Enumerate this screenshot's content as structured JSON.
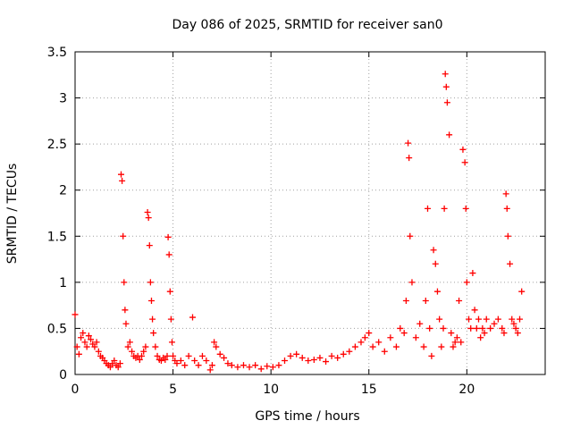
{
  "chart_data": {
    "type": "scatter",
    "title": "Day 086 of 2025, SRMTID for receiver san0",
    "xlabel": "GPS time / hours",
    "ylabel": "SRMTID / TECUs",
    "xlim": [
      0,
      24
    ],
    "ylim": [
      0,
      3.5
    ],
    "xticks": [
      0,
      5,
      10,
      15,
      20
    ],
    "xtick_labels": [
      "0",
      "5",
      "10",
      "15",
      "20"
    ],
    "yticks": [
      0,
      0.5,
      1,
      1.5,
      2,
      2.5,
      3,
      3.5
    ],
    "ytick_labels": [
      "0",
      "0.5",
      "1",
      "1.5",
      "2",
      "2.5",
      "3",
      "3.5"
    ],
    "grid": true,
    "marker": "+",
    "color": "#ff0000",
    "series": [
      {
        "name": "SRMTID",
        "x": [
          0.0,
          0.1,
          0.2,
          0.3,
          0.4,
          0.5,
          0.6,
          0.7,
          0.8,
          0.9,
          1.0,
          1.1,
          1.2,
          1.3,
          1.4,
          1.5,
          1.6,
          1.7,
          1.8,
          1.9,
          2.0,
          2.1,
          2.2,
          2.3,
          2.35,
          2.4,
          2.45,
          2.5,
          2.55,
          2.6,
          2.7,
          2.8,
          2.9,
          3.0,
          3.1,
          3.2,
          3.3,
          3.4,
          3.5,
          3.6,
          3.7,
          3.75,
          3.8,
          3.85,
          3.9,
          3.95,
          4.0,
          4.1,
          4.2,
          4.3,
          4.4,
          4.5,
          4.6,
          4.7,
          4.75,
          4.8,
          4.85,
          4.9,
          4.95,
          5.0,
          5.1,
          5.2,
          5.4,
          5.6,
          5.8,
          6.0,
          6.1,
          6.3,
          6.5,
          6.7,
          6.9,
          7.0,
          7.1,
          7.2,
          7.4,
          7.6,
          7.8,
          8.0,
          8.3,
          8.6,
          8.9,
          9.2,
          9.5,
          9.8,
          10.1,
          10.4,
          10.7,
          11.0,
          11.3,
          11.6,
          11.9,
          12.2,
          12.5,
          12.8,
          13.1,
          13.4,
          13.7,
          14.0,
          14.3,
          14.6,
          14.8,
          15.0,
          15.2,
          15.5,
          15.8,
          16.1,
          16.4,
          16.6,
          16.8,
          16.9,
          17.0,
          17.05,
          17.1,
          17.2,
          17.4,
          17.6,
          17.8,
          17.9,
          18.0,
          18.1,
          18.2,
          18.3,
          18.4,
          18.5,
          18.6,
          18.7,
          18.8,
          18.85,
          18.9,
          18.95,
          19.0,
          19.1,
          19.2,
          19.3,
          19.4,
          19.5,
          19.6,
          19.7,
          19.8,
          19.9,
          19.95,
          20.0,
          20.1,
          20.2,
          20.3,
          20.4,
          20.5,
          20.6,
          20.7,
          20.8,
          20.9,
          21.0,
          21.2,
          21.4,
          21.6,
          21.8,
          21.9,
          22.0,
          22.05,
          22.1,
          22.2,
          22.3,
          22.4,
          22.5,
          22.6,
          22.7,
          22.8
        ],
        "y": [
          0.65,
          0.3,
          0.22,
          0.4,
          0.45,
          0.35,
          0.3,
          0.42,
          0.38,
          0.33,
          0.3,
          0.35,
          0.25,
          0.2,
          0.18,
          0.15,
          0.12,
          0.1,
          0.08,
          0.12,
          0.15,
          0.1,
          0.08,
          0.12,
          2.17,
          2.1,
          1.5,
          1.0,
          0.7,
          0.55,
          0.3,
          0.35,
          0.25,
          0.2,
          0.18,
          0.2,
          0.16,
          0.2,
          0.25,
          0.3,
          1.76,
          1.7,
          1.4,
          1.0,
          0.8,
          0.6,
          0.45,
          0.3,
          0.2,
          0.16,
          0.15,
          0.18,
          0.16,
          0.2,
          1.49,
          1.3,
          0.9,
          0.6,
          0.35,
          0.2,
          0.15,
          0.12,
          0.15,
          0.1,
          0.2,
          0.62,
          0.15,
          0.1,
          0.2,
          0.15,
          0.05,
          0.1,
          0.35,
          0.3,
          0.22,
          0.18,
          0.12,
          0.1,
          0.08,
          0.1,
          0.08,
          0.1,
          0.06,
          0.09,
          0.08,
          0.1,
          0.15,
          0.2,
          0.22,
          0.18,
          0.15,
          0.16,
          0.18,
          0.14,
          0.2,
          0.18,
          0.22,
          0.25,
          0.3,
          0.35,
          0.4,
          0.45,
          0.3,
          0.35,
          0.25,
          0.4,
          0.3,
          0.5,
          0.45,
          0.8,
          2.51,
          2.35,
          1.5,
          1.0,
          0.4,
          0.55,
          0.3,
          0.8,
          1.8,
          0.5,
          0.2,
          1.35,
          1.2,
          0.9,
          0.6,
          0.3,
          0.5,
          1.8,
          3.26,
          3.12,
          2.95,
          2.6,
          0.45,
          0.3,
          0.35,
          0.4,
          0.8,
          0.35,
          2.44,
          2.3,
          1.8,
          1.0,
          0.6,
          0.5,
          1.1,
          0.7,
          0.5,
          0.6,
          0.4,
          0.5,
          0.45,
          0.6,
          0.5,
          0.55,
          0.6,
          0.5,
          0.45,
          1.96,
          1.8,
          1.5,
          1.2,
          0.6,
          0.55,
          0.5,
          0.45,
          0.6,
          0.9
        ]
      }
    ]
  }
}
